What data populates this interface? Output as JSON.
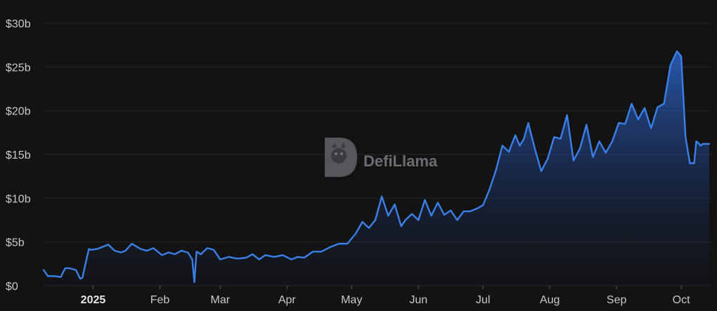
{
  "chart_data": {
    "type": "area",
    "title": "",
    "xlabel": "",
    "ylabel": "",
    "ylim": [
      0,
      30
    ],
    "y_unit": "b",
    "yticks": [
      {
        "value": 0,
        "label": "$0"
      },
      {
        "value": 5,
        "label": "$5b"
      },
      {
        "value": 10,
        "label": "$10b"
      },
      {
        "value": 15,
        "label": "$15b"
      },
      {
        "value": 20,
        "label": "$20b"
      },
      {
        "value": 25,
        "label": "$25b"
      },
      {
        "value": 30,
        "label": "$30b"
      }
    ],
    "xlim": [
      "2024-12-09",
      "2025-10-15"
    ],
    "xticks": [
      {
        "date": "2025-01-01",
        "label": "2025",
        "bold": true
      },
      {
        "date": "2025-02-01",
        "label": "Feb",
        "bold": false
      },
      {
        "date": "2025-03-01",
        "label": "Mar",
        "bold": false
      },
      {
        "date": "2025-04-01",
        "label": "Apr",
        "bold": false
      },
      {
        "date": "2025-05-01",
        "label": "May",
        "bold": false
      },
      {
        "date": "2025-06-01",
        "label": "Jun",
        "bold": false
      },
      {
        "date": "2025-07-01",
        "label": "Jul",
        "bold": false
      },
      {
        "date": "2025-08-01",
        "label": "Aug",
        "bold": false
      },
      {
        "date": "2025-09-01",
        "label": "Sep",
        "bold": false
      },
      {
        "date": "2025-10-01",
        "label": "Oct",
        "bold": false
      }
    ],
    "grid": true,
    "color": "#3b7fe8",
    "series": [
      {
        "x": [
          "2024-12-09",
          "2024-12-11",
          "2024-12-14",
          "2024-12-17",
          "2024-12-19",
          "2024-12-21",
          "2024-12-24",
          "2024-12-26",
          "2024-12-27",
          "2024-12-30",
          "2024-12-31",
          "2025-01-03",
          "2025-01-06",
          "2025-01-08",
          "2025-01-11",
          "2025-01-14",
          "2025-01-16",
          "2025-01-19",
          "2025-01-23",
          "2025-01-26",
          "2025-01-29",
          "2025-02-02",
          "2025-02-05",
          "2025-02-08",
          "2025-02-11",
          "2025-02-14",
          "2025-02-16",
          "2025-02-17",
          "2025-02-18",
          "2025-02-20",
          "2025-02-23",
          "2025-02-26",
          "2025-03-01",
          "2025-03-05",
          "2025-03-09",
          "2025-03-13",
          "2025-03-16",
          "2025-03-19",
          "2025-03-22",
          "2025-03-26",
          "2025-03-30",
          "2025-04-03",
          "2025-04-06",
          "2025-04-09",
          "2025-04-13",
          "2025-04-17",
          "2025-04-21",
          "2025-04-25",
          "2025-04-29",
          "2025-05-03",
          "2025-05-06",
          "2025-05-09",
          "2025-05-12",
          "2025-05-15",
          "2025-05-18",
          "2025-05-21",
          "2025-05-24",
          "2025-05-26",
          "2025-05-29",
          "2025-06-01",
          "2025-06-04",
          "2025-06-07",
          "2025-06-10",
          "2025-06-13",
          "2025-06-16",
          "2025-06-19",
          "2025-06-22",
          "2025-06-25",
          "2025-06-28",
          "2025-07-01",
          "2025-07-04",
          "2025-07-07",
          "2025-07-10",
          "2025-07-13",
          "2025-07-16",
          "2025-07-18",
          "2025-07-20",
          "2025-07-22",
          "2025-07-25",
          "2025-07-28",
          "2025-07-31",
          "2025-08-03",
          "2025-08-06",
          "2025-08-09",
          "2025-08-12",
          "2025-08-15",
          "2025-08-18",
          "2025-08-21",
          "2025-08-24",
          "2025-08-27",
          "2025-08-30",
          "2025-09-02",
          "2025-09-05",
          "2025-09-08",
          "2025-09-11",
          "2025-09-14",
          "2025-09-17",
          "2025-09-20",
          "2025-09-23",
          "2025-09-26",
          "2025-09-29",
          "2025-10-01",
          "2025-10-03",
          "2025-10-05",
          "2025-10-07",
          "2025-10-08",
          "2025-10-09",
          "2025-10-10",
          "2025-10-11",
          "2025-10-12",
          "2025-10-14"
        ],
        "values": [
          1.8,
          1.1,
          1.1,
          1.0,
          2.0,
          2.0,
          1.8,
          0.8,
          0.9,
          4.2,
          4.1,
          4.2,
          4.5,
          4.7,
          4.0,
          3.8,
          4.0,
          4.8,
          4.2,
          4.0,
          4.3,
          3.5,
          3.8,
          3.6,
          4.0,
          3.8,
          3.0,
          0.4,
          3.9,
          3.6,
          4.3,
          4.1,
          3.0,
          3.3,
          3.1,
          3.2,
          3.6,
          3.0,
          3.5,
          3.3,
          3.5,
          3.0,
          3.3,
          3.2,
          3.9,
          3.9,
          4.4,
          4.8,
          4.8,
          6.0,
          7.3,
          6.6,
          7.5,
          10.2,
          8.0,
          9.3,
          6.8,
          7.5,
          8.2,
          7.5,
          9.8,
          8.0,
          9.5,
          8.1,
          8.6,
          7.5,
          8.5,
          8.5,
          8.8,
          9.2,
          11.0,
          13.2,
          16.0,
          15.3,
          17.2,
          16.0,
          16.8,
          18.6,
          15.7,
          13.1,
          14.5,
          17.0,
          16.8,
          19.5,
          14.3,
          15.7,
          18.4,
          14.7,
          16.5,
          15.2,
          16.5,
          18.6,
          18.5,
          20.8,
          19.0,
          20.3,
          18.0,
          20.4,
          20.8,
          25.2,
          26.8,
          26.2,
          17.0,
          14.0,
          14.0,
          16.5,
          16.3,
          16.0,
          16.2,
          16.2,
          16.2
        ]
      }
    ]
  },
  "watermark": {
    "text": "DefiLlama"
  }
}
